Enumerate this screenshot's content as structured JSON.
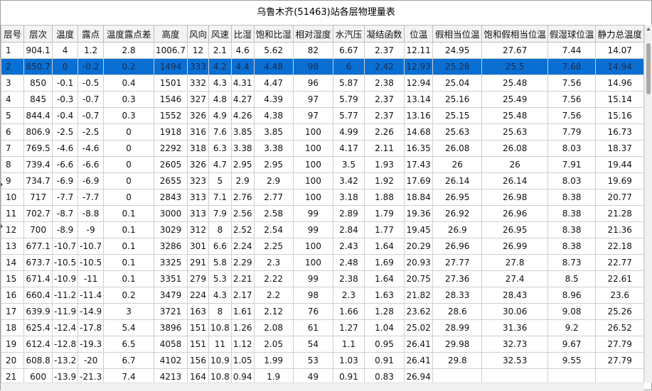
{
  "window": {
    "title": "乌鲁木齐(51463)站各层物理量表"
  },
  "columns": [
    "层号",
    "层次",
    "温度",
    "露点",
    "温度露点差",
    "高度",
    "风向",
    "风速",
    "比湿",
    "饱和比湿",
    "相对湿度",
    "水汽压",
    "凝结函数",
    "位温",
    "假相当位温",
    "饱和假相当位温",
    "假湿球位温",
    "静力总温度"
  ],
  "rows": [
    [
      "1",
      "904.1",
      "4",
      "1.2",
      "2.8",
      "1006.7",
      "12",
      "2.1",
      "4.6",
      "5.62",
      "82",
      "6.67",
      "2.37",
      "12.11",
      "24.95",
      "27.67",
      "7.44",
      "14.07"
    ],
    [
      "2",
      "850.7",
      "0",
      "-0.2",
      "0.2",
      "1494",
      "333",
      "4.2",
      "4.4",
      "4.48",
      "98",
      "6",
      "2.42",
      "12.93",
      "25.28",
      "25.5",
      "7.68",
      "14.94"
    ],
    [
      "3",
      "850",
      "-0.1",
      "-0.5",
      "0.4",
      "1501",
      "332",
      "4.3",
      "4.31",
      "4.47",
      "96",
      "5.87",
      "2.38",
      "12.94",
      "25.04",
      "25.48",
      "7.56",
      "14.96"
    ],
    [
      "4",
      "845",
      "-0.3",
      "-0.7",
      "0.3",
      "1546",
      "327",
      "4.8",
      "4.27",
      "4.39",
      "97",
      "5.79",
      "2.37",
      "13.14",
      "25.16",
      "25.49",
      "7.56",
      "15.14"
    ],
    [
      "5",
      "844.4",
      "-0.4",
      "-0.7",
      "0.3",
      "1552",
      "326",
      "4.9",
      "4.26",
      "4.38",
      "97",
      "5.77",
      "2.37",
      "13.16",
      "25.15",
      "25.48",
      "7.56",
      "15.16"
    ],
    [
      "6",
      "806.9",
      "-2.5",
      "-2.5",
      "0",
      "1918",
      "316",
      "7.6",
      "3.85",
      "3.85",
      "100",
      "4.99",
      "2.26",
      "14.68",
      "25.63",
      "25.63",
      "7.79",
      "16.73"
    ],
    [
      "7",
      "769.5",
      "-4.6",
      "-4.6",
      "0",
      "2292",
      "318",
      "6.3",
      "3.38",
      "3.38",
      "100",
      "4.17",
      "2.11",
      "16.35",
      "26.08",
      "26.08",
      "8.03",
      "18.37"
    ],
    [
      "8",
      "739.4",
      "-6.6",
      "-6.6",
      "0",
      "2605",
      "326",
      "4.7",
      "2.95",
      "2.95",
      "100",
      "3.5",
      "1.93",
      "17.43",
      "26",
      "26",
      "7.91",
      "19.44"
    ],
    [
      "9",
      "734.7",
      "-6.9",
      "-6.9",
      "0",
      "2655",
      "323",
      "5",
      "2.9",
      "2.9",
      "100",
      "3.42",
      "1.92",
      "17.69",
      "26.14",
      "26.14",
      "8.03",
      "19.69"
    ],
    [
      "10",
      "717",
      "-7.7",
      "-7.7",
      "0",
      "2843",
      "313",
      "7.1",
      "2.76",
      "2.77",
      "100",
      "3.18",
      "1.88",
      "18.84",
      "26.95",
      "26.98",
      "8.38",
      "20.77"
    ],
    [
      "11",
      "702.7",
      "-8.7",
      "-8.8",
      "0.1",
      "3000",
      "313",
      "7.9",
      "2.56",
      "2.58",
      "99",
      "2.89",
      "1.79",
      "19.36",
      "26.92",
      "26.96",
      "8.38",
      "21.28"
    ],
    [
      "12",
      "700",
      "-8.9",
      "-9",
      "0.1",
      "3029",
      "312",
      "8",
      "2.52",
      "2.54",
      "99",
      "2.84",
      "1.77",
      "19.45",
      "26.9",
      "26.95",
      "8.38",
      "21.36"
    ],
    [
      "13",
      "677.1",
      "-10.7",
      "-10.7",
      "0.1",
      "3286",
      "301",
      "6.6",
      "2.24",
      "2.25",
      "100",
      "2.43",
      "1.64",
      "20.29",
      "26.96",
      "26.99",
      "8.38",
      "22.18"
    ],
    [
      "14",
      "673.7",
      "-10.5",
      "-10.5",
      "0.1",
      "3325",
      "291",
      "5.8",
      "2.29",
      "2.3",
      "100",
      "2.48",
      "1.69",
      "20.93",
      "27.77",
      "27.8",
      "8.73",
      "22.77"
    ],
    [
      "15",
      "671.4",
      "-10.9",
      "-11",
      "0.1",
      "3351",
      "279",
      "5.3",
      "2.21",
      "2.22",
      "99",
      "2.38",
      "1.64",
      "20.75",
      "27.36",
      "27.4",
      "8.5",
      "22.61"
    ],
    [
      "16",
      "660.4",
      "-11.2",
      "-11.4",
      "0.2",
      "3479",
      "224",
      "4.3",
      "2.17",
      "2.2",
      "98",
      "2.3",
      "1.63",
      "21.82",
      "28.33",
      "28.43",
      "8.96",
      "23.6"
    ],
    [
      "17",
      "639.9",
      "-11.9",
      "-14.9",
      "3",
      "3721",
      "163",
      "8",
      "1.61",
      "2.12",
      "76",
      "1.66",
      "1.28",
      "23.62",
      "28.6",
      "30.06",
      "9.08",
      "25.26"
    ],
    [
      "18",
      "625.4",
      "-12.4",
      "-17.8",
      "5.4",
      "3896",
      "151",
      "10.8",
      "1.26",
      "2.08",
      "61",
      "1.27",
      "1.04",
      "25.02",
      "28.99",
      "31.36",
      "9.2",
      "26.52"
    ],
    [
      "19",
      "612.4",
      "-12.8",
      "-19.3",
      "6.5",
      "4058",
      "151",
      "11",
      "1.12",
      "2.05",
      "54",
      "1.1",
      "0.95",
      "26.41",
      "29.98",
      "32.73",
      "9.67",
      "27.79"
    ],
    [
      "20",
      "608.8",
      "-13.2",
      "-20",
      "6.7",
      "4102",
      "156",
      "10.9",
      "1.05",
      "1.99",
      "53",
      "1.03",
      "0.91",
      "26.41",
      "29.8",
      "32.53",
      "9.55",
      "27.79"
    ],
    [
      "21",
      "600",
      "-13.9",
      "-21.3",
      "7.4",
      "4213",
      "164",
      "10.8",
      "0.94",
      "1.9",
      "49",
      "0.91",
      "0.83",
      "26.94",
      "",
      "",
      "",
      ""
    ]
  ],
  "selected_row": "2",
  "colors": {
    "selection": "#0a6fd3",
    "header_bg": "#f3f3f3",
    "grid_line": "#cfcfcf"
  }
}
